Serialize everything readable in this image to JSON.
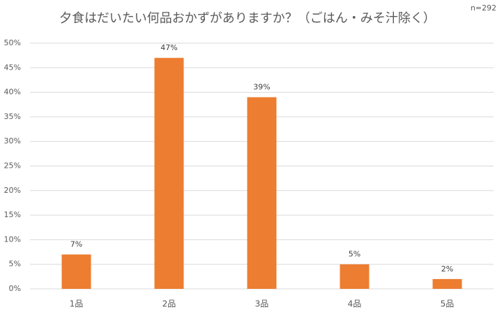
{
  "chart_data": {
    "type": "bar",
    "title": "夕食はだいたい何品おかずがありますか？（ごはん・みそ汁除く）",
    "annotation": "n=292",
    "categories": [
      "1品",
      "2品",
      "3品",
      "4品",
      "5品"
    ],
    "values": [
      7,
      47,
      39,
      5,
      2
    ],
    "value_labels": [
      "7%",
      "47%",
      "39%",
      "5%",
      "2%"
    ],
    "color": "#ed7d31",
    "ylim": [
      0,
      50
    ],
    "yticks": [
      {
        "value": 0,
        "label": "0%"
      },
      {
        "value": 5,
        "label": "5%"
      },
      {
        "value": 10,
        "label": "10%"
      },
      {
        "value": 15,
        "label": "15%"
      },
      {
        "value": 20,
        "label": "20%"
      },
      {
        "value": 25,
        "label": "25%"
      },
      {
        "value": 30,
        "label": "30%"
      },
      {
        "value": 35,
        "label": "35%"
      },
      {
        "value": 40,
        "label": "40%"
      },
      {
        "value": 45,
        "label": "45%"
      },
      {
        "value": 50,
        "label": "50%"
      }
    ],
    "grid": true
  }
}
